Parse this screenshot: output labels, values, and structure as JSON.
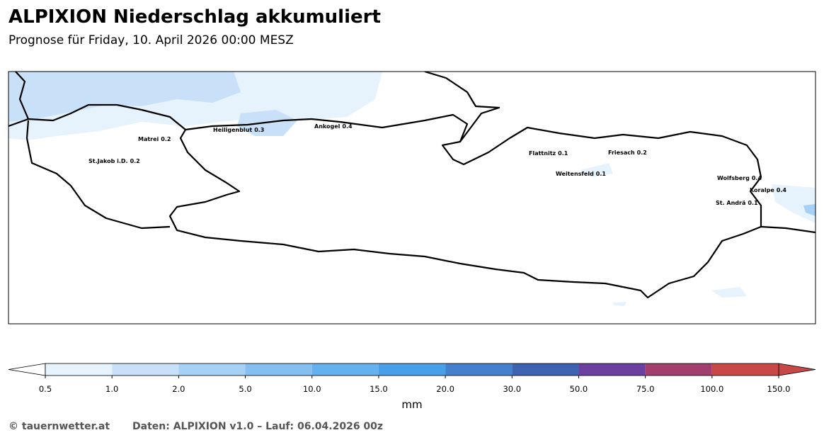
{
  "header": {
    "title": "ALPIXION Niederschlag akkumuliert",
    "subtitle": "Prognose für Friday, 10. April 2026 00:00 MESZ"
  },
  "stations": [
    {
      "name": "Heiligenblut",
      "value": 0.3
    },
    {
      "name": "Ankogel",
      "value": 0.4
    },
    {
      "name": "Matrei",
      "value": 0.2
    },
    {
      "name": "St.Jakob i.D.",
      "value": 0.2
    },
    {
      "name": "Flattnitz",
      "value": 0.1
    },
    {
      "name": "Friesach",
      "value": 0.2
    },
    {
      "name": "Weitensfeld",
      "value": 0.1
    },
    {
      "name": "Wolfsberg",
      "value": 0.4
    },
    {
      "name": "Koralpe",
      "value": 0.4
    },
    {
      "name": "St. Andrä",
      "value": 0.1
    }
  ],
  "colorbar": {
    "label": "mm",
    "ticks": [
      0.5,
      {
        "value": 1,
        "label": "1.0"
      },
      {
        "value": 2,
        "label": "2.0"
      },
      {
        "value": 5,
        "label": "5.0"
      },
      {
        "value": 10,
        "label": "10.0"
      },
      {
        "value": 15,
        "label": "15.0"
      },
      {
        "value": 20,
        "label": "20.0"
      },
      {
        "value": 30,
        "label": "30.0"
      },
      {
        "value": 50,
        "label": "50.0"
      },
      {
        "value": 75,
        "label": "75.0"
      },
      {
        "value": 100,
        "label": "100.0"
      },
      {
        "value": 150,
        "label": "150.0"
      }
    ],
    "colors": [
      "#e6f2fc",
      "#c8e1f8",
      "#a6d0f4",
      "#84bff0",
      "#64b1f0",
      "#48a0e8",
      "#4480cc",
      "#3d63b0",
      "#6a3fa0",
      "#a23e6e",
      "#c84848"
    ],
    "under_color": "#ffffff",
    "over_color": "#c84848"
  },
  "footer": {
    "credit": "© tauernwetter.at",
    "source": "Daten: ALPIXION v1.0 – Lauf: 06.04.2026 00z"
  }
}
